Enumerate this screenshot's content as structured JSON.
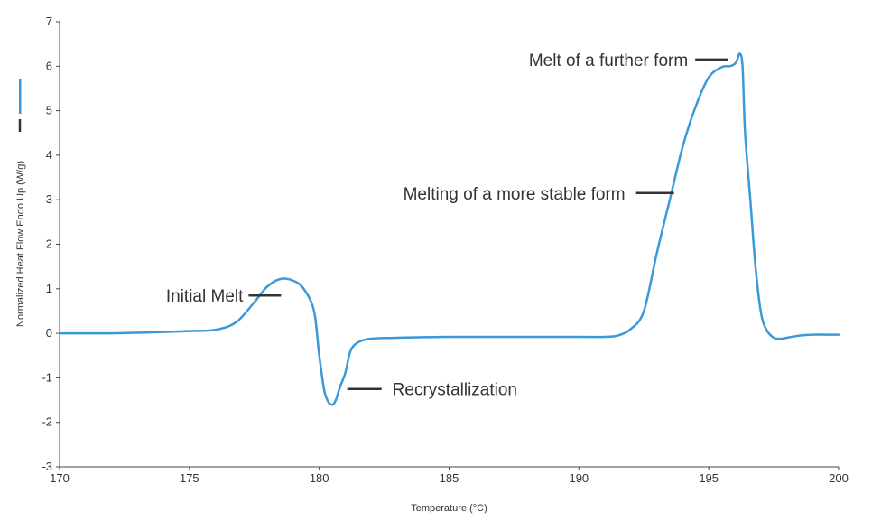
{
  "chart_data": {
    "type": "line",
    "title": "",
    "xlabel": "Temperature (°C)",
    "ylabel": "Normalized Heat Flow Endo Up (W/g)",
    "xlim": [
      170,
      200
    ],
    "ylim": [
      -3,
      7
    ],
    "x_ticks": [
      170,
      175,
      180,
      185,
      190,
      195,
      200
    ],
    "y_ticks": [
      -3,
      -2,
      -1,
      0,
      1,
      2,
      3,
      4,
      5,
      6,
      7
    ],
    "grid": false,
    "series_color": "#3a9ad9",
    "legend_marker_color": "#3a9ad9",
    "series": [
      {
        "x": [
          170,
          172,
          174,
          175,
          176,
          176.8,
          177.5,
          178,
          178.5,
          179,
          179.4,
          179.8,
          180,
          180.2,
          180.4,
          180.6,
          180.8,
          181,
          181.2,
          181.5,
          182,
          183,
          185,
          188,
          190,
          191,
          191.5,
          192,
          192.5,
          193,
          193.5,
          194,
          194.5,
          195,
          195.5,
          195.8,
          196,
          196.1,
          196.2,
          196.3,
          196.4,
          196.6,
          196.8,
          197,
          197.2,
          197.5,
          197.8,
          198,
          198.5,
          199,
          199.5,
          200
        ],
        "y": [
          0,
          0,
          0.03,
          0.05,
          0.08,
          0.25,
          0.7,
          1.05,
          1.22,
          1.18,
          1.0,
          0.5,
          -0.5,
          -1.3,
          -1.58,
          -1.55,
          -1.2,
          -0.9,
          -0.4,
          -0.2,
          -0.12,
          -0.1,
          -0.08,
          -0.08,
          -0.08,
          -0.08,
          -0.05,
          0.1,
          0.5,
          1.8,
          3.0,
          4.2,
          5.1,
          5.75,
          5.98,
          6.0,
          6.05,
          6.15,
          6.28,
          6.0,
          4.5,
          3.0,
          1.5,
          0.5,
          0.1,
          -0.1,
          -0.12,
          -0.1,
          -0.05,
          -0.03,
          -0.03,
          -0.03
        ]
      }
    ],
    "annotations": [
      {
        "text": "Initial Melt",
        "x": 178.6,
        "y": 0.85
      },
      {
        "text": "Recrystallization",
        "x": 180.8,
        "y": -1.25
      },
      {
        "text": "Melting of a more stable form",
        "x": 193.8,
        "y": 3.15
      },
      {
        "text": "Melt of a further form",
        "x": 195.8,
        "y": 6.15
      }
    ]
  }
}
